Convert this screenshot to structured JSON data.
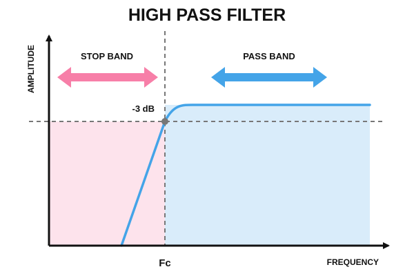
{
  "title": "HIGH PASS FILTER",
  "axes": {
    "y_label": "AMPLITUDE",
    "x_label": "FREQUENCY"
  },
  "bands": {
    "stop": {
      "label": "STOP BAND",
      "color": "#f77fa8",
      "fill": "#fde3ec"
    },
    "pass": {
      "label": "PASS BAND",
      "color": "#44a4e8",
      "fill": "#d9ecfa"
    }
  },
  "markers": {
    "cutoff_label": "Fc",
    "cutoff_level_label": "-3 dB"
  },
  "colors": {
    "axis": "#111111",
    "curve": "#44a4e8",
    "guide": "#777777",
    "point": "#777777"
  }
}
